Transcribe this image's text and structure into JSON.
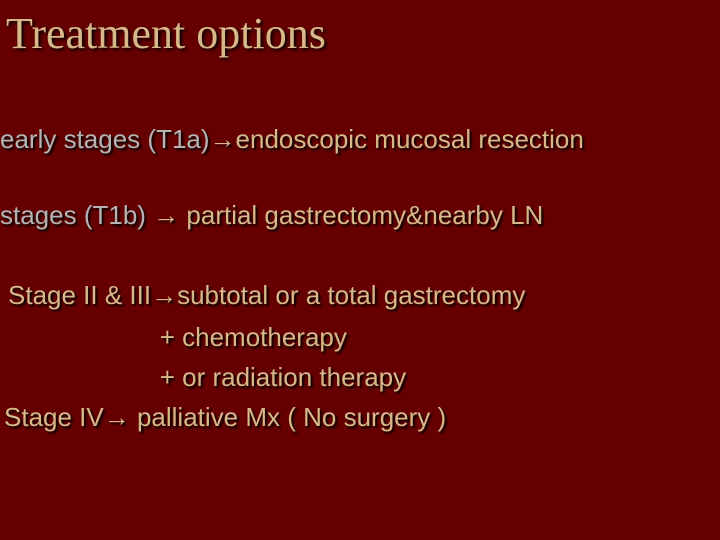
{
  "colors": {
    "background": "#660000",
    "title_color": "#d6b88a",
    "tan": "#d6b88a",
    "grey": "#b4b4b4",
    "shadow": "#000000"
  },
  "typography": {
    "title_font": "Georgia",
    "body_font": "Verdana",
    "title_size_pt": 44,
    "body_size_pt": 26
  },
  "title": "Treatment  options",
  "arrow": "→",
  "lines": {
    "l1": {
      "lead": "early stages (T1a)",
      "tail": "endoscopic mucosal resection"
    },
    "l2": {
      "lead": "stages  (T1b) ",
      "tail": " partial gastrectomy&nearby LN"
    },
    "l3": {
      "lead": "Stage II & III",
      "tail": "subtotal or a total gastrectomy"
    },
    "l4": {
      "indent": "                     ",
      "text": "+  chemotherapy"
    },
    "l5": {
      "indent": "                     ",
      "text": "+ or radiation therapy"
    },
    "l6": {
      "lead": "Stage IV",
      "tail": " palliative  Mx ( No surgery )"
    }
  }
}
